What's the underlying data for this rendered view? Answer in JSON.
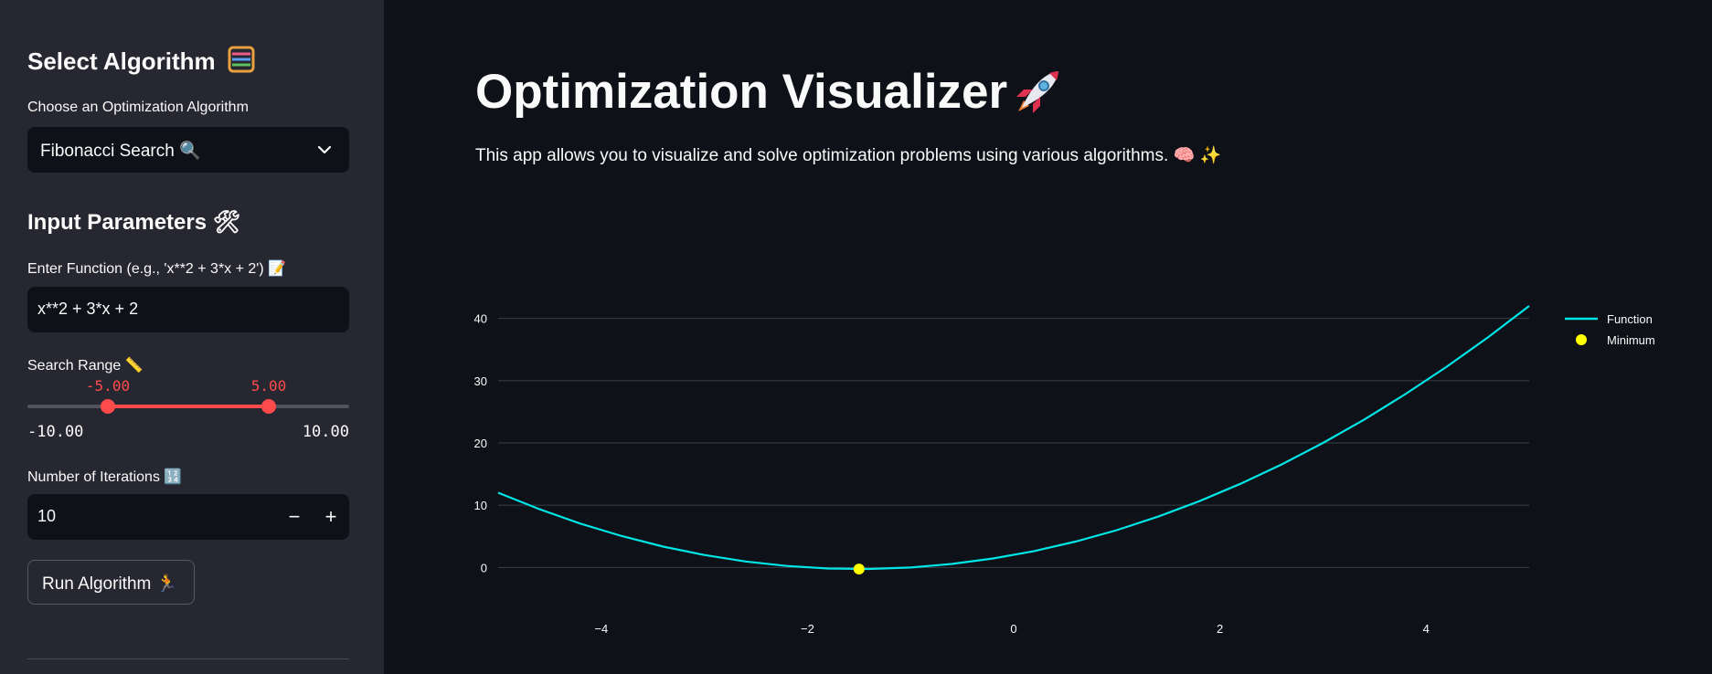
{
  "sidebar": {
    "select_algorithm_heading": "Select Algorithm",
    "select_algorithm_icon": "abacus-icon",
    "algorithm_label": "Choose an Optimization Algorithm",
    "algorithm_selected": "Fibonacci Search 🔍",
    "input_parameters_heading": "Input Parameters 🛠",
    "function_label": "Enter Function (e.g., 'x**2 + 3*x + 2') 📝",
    "function_value": "x**2 + 3*x + 2",
    "search_range_label": "Search Range 📏",
    "range": {
      "min": -10.0,
      "max": 10.0,
      "low": -5.0,
      "high": 5.0,
      "low_text": "-5.00",
      "high_text": "5.00",
      "min_text": "-10.00",
      "max_text": "10.00"
    },
    "iterations_label": "Number of Iterations 🔢",
    "iterations_value": "10",
    "decrement_label": "−",
    "increment_label": "+",
    "run_button_label": "Run Algorithm 🏃"
  },
  "main": {
    "title": "Optimization Visualizer",
    "title_icon": "rocket-icon",
    "description": "This app allows you to visualize and solve optimization problems using various algorithms. 🧠 ✨"
  },
  "colors": {
    "background": "#0e1117",
    "sidebar": "#262730",
    "accent": "#ff4b4b",
    "function_line": "#00e5e5",
    "minimum_marker": "#ffff00"
  },
  "chart_data": {
    "type": "line",
    "title": "",
    "xlabel": "",
    "ylabel": "",
    "xlim": [
      -5,
      5
    ],
    "ylim": [
      -2,
      42
    ],
    "x_ticks": [
      -4,
      -2,
      0,
      2,
      4
    ],
    "x_tick_labels": [
      "−4",
      "−2",
      "0",
      "2",
      "4"
    ],
    "y_ticks": [
      0,
      10,
      20,
      30,
      40
    ],
    "y_tick_labels": [
      "0",
      "10",
      "20",
      "30",
      "40"
    ],
    "grid": "horizontal",
    "legend_position": "top-right",
    "series": [
      {
        "name": "Function",
        "type": "line",
        "x": [
          -5,
          -4.6,
          -4.2,
          -3.8,
          -3.4,
          -3.0,
          -2.6,
          -2.2,
          -1.8,
          -1.4,
          -1.0,
          -0.6,
          -0.2,
          0.2,
          0.6,
          1.0,
          1.4,
          1.8,
          2.2,
          2.6,
          3.0,
          3.4,
          3.8,
          4.2,
          4.6,
          5.0
        ],
        "y": [
          12,
          9.36,
          7.04,
          5.04,
          3.36,
          2.0,
          0.96,
          0.24,
          -0.16,
          -0.24,
          0.0,
          0.56,
          1.44,
          2.64,
          4.16,
          6.0,
          8.16,
          10.64,
          13.44,
          16.56,
          20.0,
          23.76,
          27.84,
          32.24,
          36.96,
          42.0
        ]
      },
      {
        "name": "Minimum",
        "type": "scatter",
        "x": [
          -1.5
        ],
        "y": [
          -0.25
        ]
      }
    ]
  }
}
